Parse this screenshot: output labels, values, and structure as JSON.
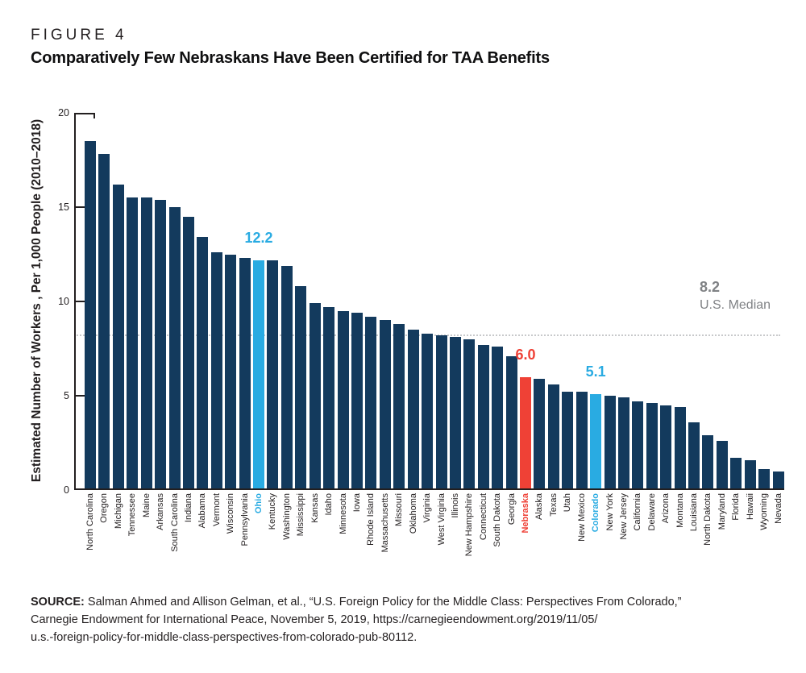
{
  "figure": {
    "label": "FIGURE 4",
    "title": "Comparatively Few Nebraskans Have Been Certified for TAA Benefits"
  },
  "chart_data": {
    "type": "bar",
    "title": "Comparatively Few Nebraskans Have Been Certified for TAA Benefits",
    "xlabel": "",
    "ylabel": "Estimated Number of Workers , Per 1,000 People (2010–2018)",
    "ylim": [
      0,
      20
    ],
    "yticks": [
      0,
      5,
      10,
      15,
      20
    ],
    "grid": false,
    "legend_position": "none",
    "categories": [
      "North Carolina",
      "Oregon",
      "Michigan",
      "Tennessee",
      "Maine",
      "Arkansas",
      "South Carolina",
      "Indiana",
      "Alabama",
      "Vermont",
      "Wisconsin",
      "Pennsylvania",
      "Ohio",
      "Kentucky",
      "Washington",
      "Mississippi",
      "Kansas",
      "Idaho",
      "Minnesota",
      "Iowa",
      "Rhode Island",
      "Massachusetts",
      "Missouri",
      "Oklahoma",
      "Virginia",
      "West Virginia",
      "Illinois",
      "New Hampshire",
      "Connecticut",
      "South Dakota",
      "Georgia",
      "Nebraska",
      "Alaska",
      "Texas",
      "Utah",
      "New Mexico",
      "Colorado",
      "New York",
      "New Jersey",
      "California",
      "Delaware",
      "Arizona",
      "Montana",
      "Louisiana",
      "North Dakota",
      "Maryland",
      "Florida",
      "Hawaii",
      "Wyoming",
      "Nevada"
    ],
    "values": [
      18.5,
      17.8,
      16.2,
      15.5,
      15.5,
      15.4,
      15.0,
      14.5,
      13.4,
      12.6,
      12.5,
      12.3,
      12.2,
      12.2,
      11.9,
      10.8,
      9.9,
      9.7,
      9.5,
      9.4,
      9.2,
      9.0,
      8.8,
      8.5,
      8.3,
      8.2,
      8.1,
      8.0,
      7.7,
      7.6,
      7.1,
      6.0,
      5.9,
      5.6,
      5.2,
      5.2,
      5.1,
      5.0,
      4.9,
      4.7,
      4.6,
      4.5,
      4.4,
      3.6,
      2.9,
      2.6,
      1.7,
      1.6,
      1.1,
      1.0
    ],
    "bar_color": "#133A5D",
    "highlight_blue": "#29ABE2",
    "highlight_red": "#EF4136",
    "axis_color": "#231F20",
    "median_line_color": "#C8C9CB",
    "highlights": [
      {
        "state": "Ohio",
        "value_label": "12.2",
        "color": "blue"
      },
      {
        "state": "Nebraska",
        "value_label": "6.0",
        "color": "red"
      },
      {
        "state": "Colorado",
        "value_label": "5.1",
        "color": "blue"
      }
    ],
    "median": {
      "value": 8.2,
      "value_label": "8.2",
      "text": "U.S. Median",
      "label_color": "#808285",
      "line_style": "dotted"
    }
  },
  "source": {
    "label": "SOURCE:",
    "line1": " Salman Ahmed and Allison Gelman, et al., “U.S. Foreign Policy for the Middle Class: Perspectives From Colorado,”",
    "line2": "Carnegie Endowment for International Peace, November 5, 2019, https://carnegieendowment.org/2019/11/05/",
    "line3": "u.s.-foreign-policy-for-middle-class-perspectives-from-colorado-pub-80112."
  }
}
